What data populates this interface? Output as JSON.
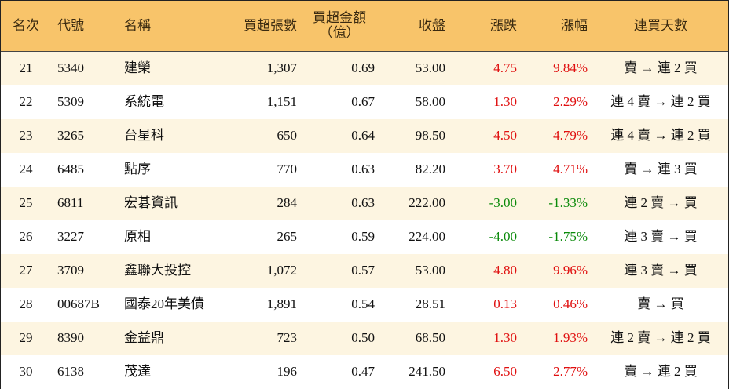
{
  "table": {
    "headers": [
      "名次",
      "代號",
      "名稱",
      "買超張數",
      [
        "買超金額",
        "（億）"
      ],
      "收盤",
      "漲跌",
      "漲幅",
      "連買天數"
    ],
    "rows": [
      [
        "21",
        "5340",
        "建榮",
        "1,307",
        "0.69",
        "53.00",
        "4.75",
        "9.84%",
        "賣 → 連 2 買"
      ],
      [
        "22",
        "5309",
        "系統電",
        "1,151",
        "0.67",
        "58.00",
        "1.30",
        "2.29%",
        "連 4 賣 → 連 2 買"
      ],
      [
        "23",
        "3265",
        "台星科",
        "650",
        "0.64",
        "98.50",
        "4.50",
        "4.79%",
        "連 4 賣 → 連 2 買"
      ],
      [
        "24",
        "6485",
        "點序",
        "770",
        "0.63",
        "82.20",
        "3.70",
        "4.71%",
        "賣 → 連 3 買"
      ],
      [
        "25",
        "6811",
        "宏碁資訊",
        "284",
        "0.63",
        "222.00",
        "-3.00",
        "-1.33%",
        "連 2 賣 → 買"
      ],
      [
        "26",
        "3227",
        "原相",
        "265",
        "0.59",
        "224.00",
        "-4.00",
        "-1.75%",
        "連 3 賣 → 買"
      ],
      [
        "27",
        "3709",
        "鑫聯大投控",
        "1,072",
        "0.57",
        "53.00",
        "4.80",
        "9.96%",
        "連 3 賣 → 買"
      ],
      [
        "28",
        "00687B",
        "國泰20年美債",
        "1,891",
        "0.54",
        "28.51",
        "0.13",
        "0.46%",
        "賣 → 買"
      ],
      [
        "29",
        "8390",
        "金益鼎",
        "723",
        "0.50",
        "68.50",
        "1.30",
        "1.93%",
        "連 2 賣 → 連 2 買"
      ],
      [
        "30",
        "6138",
        "茂達",
        "196",
        "0.47",
        "241.50",
        "6.50",
        "2.77%",
        "賣 → 連 2 買"
      ]
    ]
  }
}
